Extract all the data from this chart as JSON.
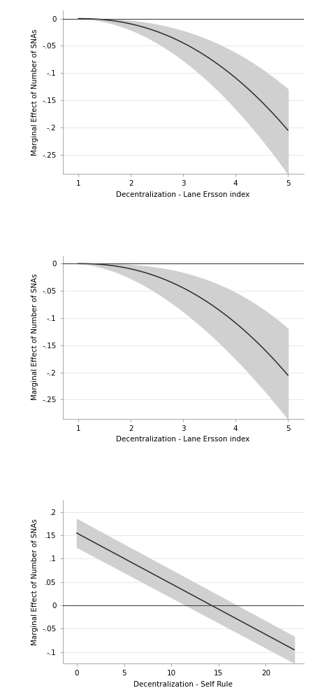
{
  "panel1": {
    "xlabel": "Decentralization - Lane Ersson index",
    "ylabel": "Marginal Effect of Number of SNAs",
    "xticks": [
      1,
      2,
      3,
      4,
      5
    ],
    "yticks": [
      0,
      -0.05,
      -0.1,
      -0.15,
      -0.2,
      -0.25
    ],
    "ytick_labels": [
      "0",
      "-.05",
      "-.1",
      "-.15",
      "-.2",
      "-.25"
    ],
    "ylim": [
      -0.285,
      0.015
    ],
    "xlim": [
      0.7,
      5.3
    ]
  },
  "panel2": {
    "xlabel": "Decentralization - Lane Ersson index",
    "ylabel": "Marginal Effect of Number of SNAs",
    "xticks": [
      1,
      2,
      3,
      4,
      5
    ],
    "yticks": [
      0,
      -0.05,
      -0.1,
      -0.15,
      -0.2,
      -0.25
    ],
    "ytick_labels": [
      "0",
      "-.05",
      "-.1",
      "-.15",
      "-.2",
      "-.25"
    ],
    "ylim": [
      -0.285,
      0.015
    ],
    "xlim": [
      0.7,
      5.3
    ]
  },
  "panel3": {
    "xlabel": "Decentralization - Self Rule",
    "ylabel": "Marginal Effect of Number of SNAs",
    "xticks": [
      0,
      5,
      10,
      15,
      20
    ],
    "yticks": [
      0.2,
      0.15,
      0.1,
      0.05,
      0,
      -0.05,
      -0.1
    ],
    "ytick_labels": [
      ".2",
      ".15",
      ".1",
      ".05",
      "0",
      "-.05",
      "-.1"
    ],
    "ylim": [
      -0.125,
      0.225
    ],
    "xlim": [
      -1.5,
      24.0
    ]
  },
  "line_color": "#2c2c2c",
  "ci_color": "#d0d0d0",
  "ref_color": "#444444",
  "background_color": "#ffffff",
  "grid_color": "#e8e8e8",
  "fontsize_label": 7.5,
  "fontsize_tick": 7.5
}
